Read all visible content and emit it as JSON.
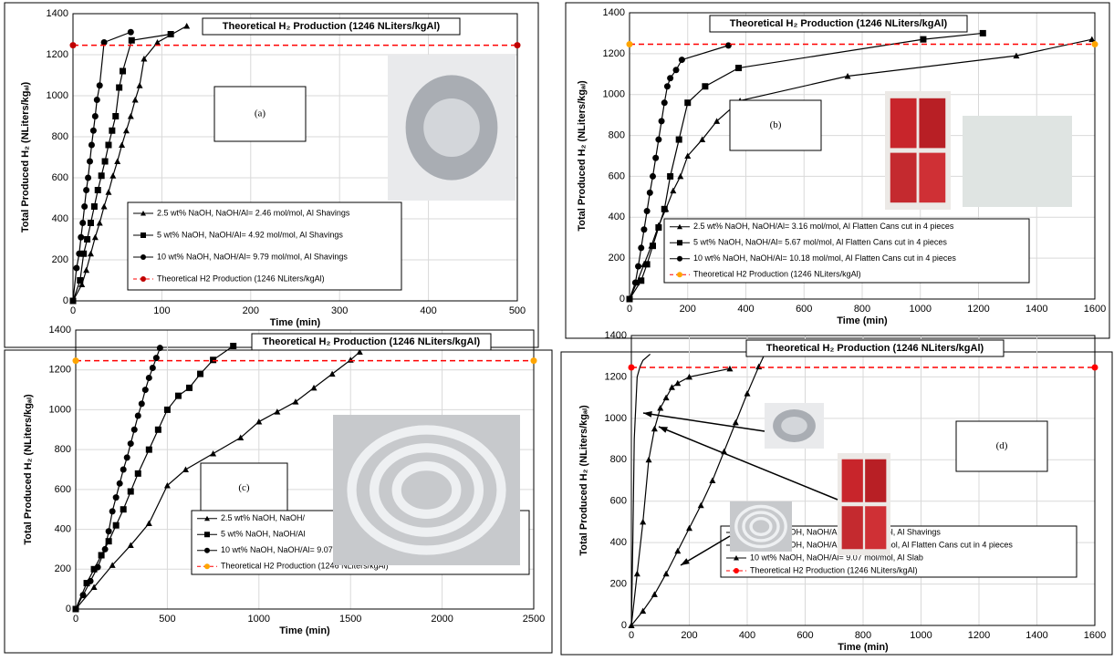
{
  "chart_data": [
    {
      "type": "line",
      "panel_label": "(a)",
      "annotation": "Theoretical H₂ Production (1246 NLiters/kgAl)",
      "x_label": "Time (min)",
      "y_label": "Total Produced H₂ (NLiters/kgₐₗ)",
      "xlim": [
        0,
        500
      ],
      "xticks": [
        0,
        100,
        200,
        300,
        400,
        500
      ],
      "ylim": [
        0,
        1400
      ],
      "yticks": [
        0,
        200,
        400,
        600,
        800,
        1000,
        1200,
        1400
      ],
      "grid": true,
      "series": [
        {
          "name": "2.5 wt% NaOH, NaOH/Al= 2.46 mol/mol, Al Shavings",
          "color": "#000000",
          "marker": "triangle",
          "x": [
            0,
            10,
            15,
            20,
            25,
            30,
            35,
            40,
            45,
            50,
            55,
            60,
            65,
            70,
            75,
            80,
            95,
            128
          ],
          "values": [
            0,
            80,
            150,
            230,
            310,
            380,
            460,
            530,
            610,
            680,
            760,
            830,
            900,
            980,
            1050,
            1180,
            1260,
            1340
          ]
        },
        {
          "name": "5 wt% NaOH, NaOH/Al= 4.92 mol/mol, Al Shavings",
          "color": "#000000",
          "marker": "square",
          "x": [
            0,
            8,
            12,
            16,
            20,
            24,
            28,
            32,
            36,
            40,
            44,
            48,
            52,
            56,
            66,
            110
          ],
          "values": [
            0,
            100,
            230,
            300,
            380,
            460,
            540,
            610,
            680,
            760,
            830,
            900,
            1040,
            1120,
            1270,
            1300
          ]
        },
        {
          "name": "10 wt% NaOH, NaOH/Al= 9.79 mol/mol, Al Shavings",
          "color": "#000000",
          "marker": "circle",
          "x": [
            0,
            4,
            7,
            9,
            11,
            13,
            15,
            17,
            19,
            21,
            23,
            25,
            27,
            30,
            35,
            65
          ],
          "values": [
            0,
            160,
            230,
            310,
            380,
            460,
            540,
            600,
            680,
            760,
            830,
            900,
            980,
            1050,
            1260,
            1310
          ]
        },
        {
          "name": "Theoretical H2 Production (1246 NLiters/kgAl)",
          "color": "#ff0000",
          "marker_color": "#c00000",
          "marker": "circle",
          "dash": true,
          "x": [
            0,
            500
          ],
          "values": [
            1246,
            1246
          ]
        }
      ]
    },
    {
      "type": "line",
      "panel_label": "(b)",
      "annotation": "Theoretical H₂ Production (1246 NLiters/kgAl)",
      "x_label": "Time (min)",
      "y_label": "Total Produced H₂ (NLiters/kgₐₗ)",
      "xlim": [
        0,
        1600
      ],
      "xticks": [
        0,
        200,
        400,
        600,
        800,
        1000,
        1200,
        1400,
        1600
      ],
      "ylim": [
        0,
        1400
      ],
      "yticks": [
        0,
        200,
        400,
        600,
        800,
        1000,
        1200,
        1400
      ],
      "grid": true,
      "series": [
        {
          "name": "2.5 wt% NaOH, NaOH/Al= 3.16 mol/mol, Al Flatten Cans cut in 4 pieces",
          "color": "#000000",
          "marker": "triangle",
          "x": [
            0,
            25,
            50,
            75,
            100,
            125,
            150,
            175,
            200,
            250,
            300,
            380,
            750,
            1330,
            1590
          ],
          "values": [
            0,
            80,
            170,
            260,
            360,
            440,
            530,
            600,
            700,
            780,
            870,
            970,
            1090,
            1190,
            1270
          ]
        },
        {
          "name": "5 wt% NaOH, NaOH/Al= 5.67 mol/mol, Al Flatten Cans cut in 4 pieces",
          "color": "#000000",
          "marker": "square",
          "x": [
            0,
            40,
            60,
            80,
            100,
            120,
            140,
            170,
            200,
            260,
            375,
            1010,
            1215
          ],
          "values": [
            0,
            90,
            170,
            260,
            350,
            440,
            600,
            780,
            960,
            1040,
            1130,
            1270,
            1300
          ]
        },
        {
          "name": "10 wt% NaOH, NaOH/Al= 10.18 mol/mol, Al Flatten Cans cut in 4 pieces",
          "color": "#000000",
          "marker": "circle",
          "x": [
            0,
            20,
            30,
            40,
            50,
            60,
            70,
            80,
            90,
            100,
            110,
            120,
            130,
            140,
            160,
            180,
            340
          ],
          "values": [
            0,
            80,
            160,
            250,
            340,
            430,
            520,
            600,
            690,
            780,
            870,
            960,
            1040,
            1080,
            1120,
            1170,
            1240
          ]
        },
        {
          "name": "Theoretical H2 Production (1246 NLiters/kgAl)",
          "color": "#ff0000",
          "marker_color": "#ffa500",
          "marker": "circle",
          "dash": true,
          "x": [
            0,
            1600
          ],
          "values": [
            1246,
            1246
          ]
        }
      ]
    },
    {
      "type": "line",
      "panel_label": "(c)",
      "annotation": "Theoretical H₂ Production (1246 NLiters/kgAl)",
      "x_label": "Time (min)",
      "y_label": "Total Produced H₂ (NLiters/kgₐₗ)",
      "xlim": [
        0,
        2500
      ],
      "xticks": [
        0,
        500,
        1000,
        1500,
        2000,
        2500
      ],
      "ylim": [
        0,
        1400
      ],
      "yticks": [
        0,
        200,
        400,
        600,
        800,
        1000,
        1200,
        1400
      ],
      "grid": true,
      "series": [
        {
          "name": "2.5 wt% NaOH, NaOH/",
          "color": "#000000",
          "marker": "triangle",
          "x": [
            0,
            100,
            200,
            300,
            400,
            500,
            600,
            750,
            900,
            1000,
            1100,
            1200,
            1300,
            1400,
            1500,
            1550
          ],
          "values": [
            0,
            110,
            220,
            320,
            430,
            620,
            700,
            780,
            860,
            940,
            990,
            1040,
            1110,
            1180,
            1250,
            1290
          ]
        },
        {
          "name": "5 wt% NaOH, NaOH/Al",
          "color": "#000000",
          "marker": "square",
          "x": [
            0,
            60,
            100,
            140,
            180,
            220,
            260,
            300,
            340,
            400,
            450,
            500,
            560,
            620,
            680,
            750,
            860
          ],
          "values": [
            0,
            130,
            200,
            270,
            340,
            420,
            500,
            590,
            680,
            800,
            900,
            1000,
            1070,
            1110,
            1180,
            1250,
            1320
          ]
        },
        {
          "name": "10 wt% NaOH, NaOH/Al= 9.07 mol/mol, Al Slab",
          "color": "#000000",
          "marker": "circle",
          "x": [
            0,
            40,
            80,
            120,
            160,
            180,
            200,
            220,
            240,
            260,
            280,
            300,
            320,
            340,
            360,
            380,
            400,
            420,
            440,
            460
          ],
          "values": [
            0,
            70,
            140,
            210,
            300,
            390,
            490,
            560,
            630,
            700,
            760,
            830,
            900,
            970,
            1030,
            1100,
            1160,
            1210,
            1260,
            1310
          ]
        },
        {
          "name": "Theoretical H2 Production (1246 NLiters/kgAl)",
          "color": "#ff0000",
          "marker_color": "#ffa500",
          "marker": "circle",
          "dash": true,
          "x": [
            0,
            2500
          ],
          "values": [
            1246,
            1246
          ]
        }
      ]
    },
    {
      "type": "line",
      "panel_label": "(d)",
      "annotation": "Theoretical H₂ Production (1246 NLiters/kgAl)",
      "x_label": "Time (min)",
      "y_label": "Total Produced H₂ (NLiters/kgₐₗ)",
      "xlim": [
        0,
        1600
      ],
      "xticks": [
        0,
        200,
        400,
        600,
        800,
        1000,
        1200,
        1400,
        1600
      ],
      "ylim": [
        0,
        1400
      ],
      "yticks": [
        0,
        200,
        400,
        600,
        800,
        1000,
        1200,
        1400
      ],
      "grid": true,
      "series": [
        {
          "name": "10 wt% NaOH, NaOH/Al= 9.79 mol/mol, Al Shavings",
          "color": "#000000",
          "marker": "none",
          "x": [
            0,
            5,
            10,
            20,
            30,
            40,
            65
          ],
          "values": [
            0,
            400,
            900,
            1200,
            1250,
            1280,
            1310
          ]
        },
        {
          "name": "10 wt% NaOH, NaOH/Al= 10.18 mol/mol, Al Flatten Cans cut in 4 pieces",
          "color": "#000000",
          "marker": "triangle",
          "x": [
            0,
            20,
            40,
            60,
            80,
            100,
            120,
            140,
            160,
            200,
            340
          ],
          "values": [
            0,
            250,
            500,
            800,
            950,
            1050,
            1100,
            1150,
            1170,
            1200,
            1240
          ]
        },
        {
          "name": "10 wt% NaOH, NaOH/Al= 9.07 mol/mol, Al Slab",
          "color": "#000000",
          "marker": "triangle",
          "x": [
            0,
            40,
            80,
            120,
            160,
            200,
            240,
            280,
            320,
            360,
            400,
            440,
            460
          ],
          "values": [
            0,
            70,
            150,
            250,
            360,
            470,
            580,
            700,
            840,
            980,
            1120,
            1250,
            1310
          ]
        },
        {
          "name": "Theoretical H2 Production (1246 NLiters/kgAl)",
          "color": "#ff0000",
          "marker_color": "#ff0000",
          "marker": "circle",
          "dash": true,
          "x": [
            0,
            1600
          ],
          "values": [
            1246,
            1246
          ]
        }
      ]
    }
  ]
}
